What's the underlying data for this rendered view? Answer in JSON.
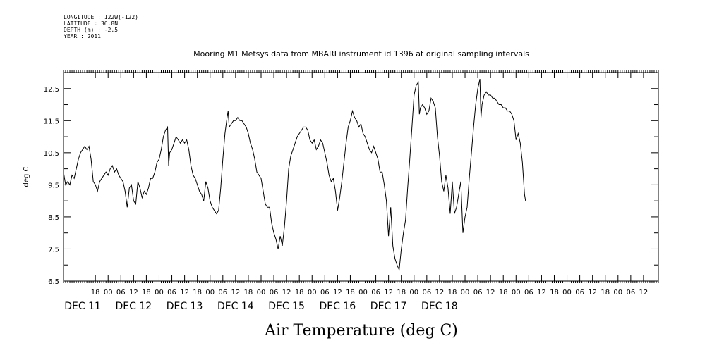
{
  "header": {
    "longitude": "LONGITUDE : 122W(-122)",
    "latitude": "LATITUDE : 36.8N",
    "depth": "DEPTH (m) : -2.5",
    "year": "YEAR : 2011"
  },
  "chart_data": {
    "type": "line",
    "title": "Mooring M1 Metsys data from MBARI instrument id 1396 at original sampling intervals",
    "xlabel": "Air Temperature (deg C)",
    "ylabel": "deg C",
    "ylim": [
      6.5,
      13.0
    ],
    "xlim_hours": [
      -9,
      271
    ],
    "y_ticks": [
      "6.5",
      "7.5",
      "8.5",
      "9.5",
      "10.5",
      "11.5",
      "12.5"
    ],
    "hour_ticks": [
      {
        "h": 6,
        "label": "18"
      },
      {
        "h": 12,
        "label": "00"
      },
      {
        "h": 18,
        "label": "06"
      },
      {
        "h": 24,
        "label": "12"
      },
      {
        "h": 30,
        "label": "18"
      },
      {
        "h": 36,
        "label": "00"
      },
      {
        "h": 42,
        "label": "06"
      },
      {
        "h": 48,
        "label": "12"
      },
      {
        "h": 54,
        "label": "18"
      },
      {
        "h": 60,
        "label": "00"
      },
      {
        "h": 66,
        "label": "06"
      },
      {
        "h": 72,
        "label": "12"
      },
      {
        "h": 78,
        "label": "18"
      },
      {
        "h": 84,
        "label": "00"
      },
      {
        "h": 90,
        "label": "06"
      },
      {
        "h": 96,
        "label": "12"
      },
      {
        "h": 102,
        "label": "18"
      },
      {
        "h": 108,
        "label": "00"
      },
      {
        "h": 114,
        "label": "06"
      },
      {
        "h": 120,
        "label": "12"
      },
      {
        "h": 126,
        "label": "18"
      },
      {
        "h": 132,
        "label": "00"
      },
      {
        "h": 138,
        "label": "06"
      },
      {
        "h": 144,
        "label": "12"
      },
      {
        "h": 150,
        "label": "18"
      },
      {
        "h": 156,
        "label": "00"
      },
      {
        "h": 162,
        "label": "06"
      },
      {
        "h": 168,
        "label": "12"
      },
      {
        "h": 174,
        "label": "18"
      },
      {
        "h": 180,
        "label": "00"
      },
      {
        "h": 186,
        "label": "06"
      },
      {
        "h": 192,
        "label": "12"
      },
      {
        "h": 198,
        "label": "18"
      },
      {
        "h": 204,
        "label": "00"
      },
      {
        "h": 210,
        "label": "06"
      },
      {
        "h": 216,
        "label": "12"
      },
      {
        "h": 222,
        "label": "18"
      },
      {
        "h": 228,
        "label": "00"
      },
      {
        "h": 234,
        "label": "06"
      },
      {
        "h": 240,
        "label": "12"
      },
      {
        "h": 246,
        "label": "18"
      },
      {
        "h": 252,
        "label": "00"
      },
      {
        "h": 258,
        "label": "06"
      },
      {
        "h": 264,
        "label": "12"
      }
    ],
    "day_labels": [
      {
        "h": 0,
        "label": "DEC 11"
      },
      {
        "h": 24,
        "label": "DEC 12"
      },
      {
        "h": 48,
        "label": "DEC 13"
      },
      {
        "h": 72,
        "label": "DEC 14"
      },
      {
        "h": 96,
        "label": "DEC 15"
      },
      {
        "h": 120,
        "label": "DEC 16"
      },
      {
        "h": 144,
        "label": "DEC 17"
      },
      {
        "h": 168,
        "label": "DEC 18"
      }
    ],
    "series": [
      {
        "points": [
          [
            -9,
            9.9
          ],
          [
            -8,
            9.5
          ],
          [
            -7,
            9.6
          ],
          [
            -6,
            9.5
          ],
          [
            -5,
            9.8
          ],
          [
            -4,
            9.7
          ],
          [
            -3,
            10.0
          ],
          [
            -2,
            10.3
          ],
          [
            -1,
            10.5
          ],
          [
            0,
            10.6
          ],
          [
            1,
            10.7
          ],
          [
            2,
            10.6
          ],
          [
            3,
            10.7
          ],
          [
            4,
            10.3
          ],
          [
            5,
            9.6
          ],
          [
            6,
            9.5
          ],
          [
            7,
            9.3
          ],
          [
            8,
            9.6
          ],
          [
            9,
            9.7
          ],
          [
            10,
            9.8
          ],
          [
            11,
            9.9
          ],
          [
            12,
            9.8
          ],
          [
            13,
            10.0
          ],
          [
            14,
            10.1
          ],
          [
            15,
            9.9
          ],
          [
            16,
            10.0
          ],
          [
            17,
            9.8
          ],
          [
            18,
            9.7
          ],
          [
            19,
            9.6
          ],
          [
            20,
            9.3
          ],
          [
            21,
            8.8
          ],
          [
            22,
            9.4
          ],
          [
            23,
            9.5
          ],
          [
            24,
            9.0
          ],
          [
            25,
            8.9
          ],
          [
            26,
            9.6
          ],
          [
            27,
            9.4
          ],
          [
            28,
            9.1
          ],
          [
            29,
            9.3
          ],
          [
            30,
            9.2
          ],
          [
            31,
            9.4
          ],
          [
            32,
            9.7
          ],
          [
            33,
            9.7
          ],
          [
            34,
            9.9
          ],
          [
            35,
            10.2
          ],
          [
            36,
            10.3
          ],
          [
            37,
            10.6
          ],
          [
            38,
            11.0
          ],
          [
            39,
            11.2
          ],
          [
            40,
            11.3
          ],
          [
            40.5,
            10.1
          ],
          [
            41,
            10.5
          ],
          [
            42,
            10.6
          ],
          [
            43,
            10.8
          ],
          [
            44,
            11.0
          ],
          [
            45,
            10.9
          ],
          [
            46,
            10.8
          ],
          [
            47,
            10.9
          ],
          [
            48,
            10.8
          ],
          [
            49,
            10.9
          ],
          [
            50,
            10.6
          ],
          [
            51,
            10.1
          ],
          [
            52,
            9.8
          ],
          [
            53,
            9.7
          ],
          [
            54,
            9.5
          ],
          [
            55,
            9.3
          ],
          [
            56,
            9.2
          ],
          [
            57,
            9.0
          ],
          [
            58,
            9.6
          ],
          [
            59,
            9.4
          ],
          [
            60,
            9.0
          ],
          [
            61,
            8.8
          ],
          [
            62,
            8.7
          ],
          [
            63,
            8.6
          ],
          [
            64,
            8.7
          ],
          [
            65,
            9.4
          ],
          [
            66,
            10.3
          ],
          [
            67,
            11.1
          ],
          [
            68,
            11.6
          ],
          [
            68.5,
            11.8
          ],
          [
            69,
            11.3
          ],
          [
            70,
            11.4
          ],
          [
            71,
            11.5
          ],
          [
            72,
            11.5
          ],
          [
            73,
            11.6
          ],
          [
            74,
            11.5
          ],
          [
            75,
            11.5
          ],
          [
            76,
            11.4
          ],
          [
            77,
            11.3
          ],
          [
            78,
            11.1
          ],
          [
            79,
            10.8
          ],
          [
            80,
            10.6
          ],
          [
            81,
            10.3
          ],
          [
            82,
            9.9
          ],
          [
            83,
            9.8
          ],
          [
            84,
            9.7
          ],
          [
            85,
            9.3
          ],
          [
            86,
            8.9
          ],
          [
            87,
            8.8
          ],
          [
            88,
            8.8
          ],
          [
            89,
            8.3
          ],
          [
            90,
            8.0
          ],
          [
            91,
            7.8
          ],
          [
            92,
            7.5
          ],
          [
            93,
            7.9
          ],
          [
            94,
            7.6
          ],
          [
            95,
            8.2
          ],
          [
            96,
            9.0
          ],
          [
            97,
            10.0
          ],
          [
            98,
            10.4
          ],
          [
            99,
            10.6
          ],
          [
            100,
            10.8
          ],
          [
            101,
            11.0
          ],
          [
            102,
            11.1
          ],
          [
            103,
            11.2
          ],
          [
            104,
            11.3
          ],
          [
            105,
            11.3
          ],
          [
            106,
            11.2
          ],
          [
            107,
            10.9
          ],
          [
            108,
            10.8
          ],
          [
            109,
            10.9
          ],
          [
            110,
            10.6
          ],
          [
            111,
            10.7
          ],
          [
            112,
            10.9
          ],
          [
            113,
            10.8
          ],
          [
            114,
            10.5
          ],
          [
            115,
            10.2
          ],
          [
            116,
            9.8
          ],
          [
            117,
            9.6
          ],
          [
            118,
            9.7
          ],
          [
            119,
            9.3
          ],
          [
            120,
            8.7
          ],
          [
            121,
            9.1
          ],
          [
            122,
            9.6
          ],
          [
            123,
            10.2
          ],
          [
            124,
            10.8
          ],
          [
            125,
            11.3
          ],
          [
            126,
            11.5
          ],
          [
            127,
            11.8
          ],
          [
            128,
            11.6
          ],
          [
            129,
            11.5
          ],
          [
            130,
            11.3
          ],
          [
            131,
            11.4
          ],
          [
            132,
            11.1
          ],
          [
            133,
            11.0
          ],
          [
            134,
            10.8
          ],
          [
            135,
            10.6
          ],
          [
            136,
            10.5
          ],
          [
            137,
            10.7
          ],
          [
            138,
            10.5
          ],
          [
            139,
            10.3
          ],
          [
            140,
            9.9
          ],
          [
            141,
            9.9
          ],
          [
            142,
            9.5
          ],
          [
            143,
            9.0
          ],
          [
            144,
            7.9
          ],
          [
            145,
            8.8
          ],
          [
            146,
            7.6
          ],
          [
            147,
            7.2
          ],
          [
            148,
            7.0
          ],
          [
            149,
            6.85
          ],
          [
            150,
            7.5
          ],
          [
            151,
            8.0
          ],
          [
            152,
            8.4
          ],
          [
            153,
            9.4
          ],
          [
            154,
            10.3
          ],
          [
            155,
            11.3
          ],
          [
            156,
            12.3
          ],
          [
            157,
            12.6
          ],
          [
            158,
            12.7
          ],
          [
            158.5,
            11.7
          ],
          [
            159,
            11.9
          ],
          [
            160,
            12.0
          ],
          [
            161,
            11.9
          ],
          [
            162,
            11.7
          ],
          [
            163,
            11.8
          ],
          [
            164,
            12.2
          ],
          [
            165,
            12.1
          ],
          [
            166,
            11.9
          ],
          [
            167,
            11.0
          ],
          [
            168,
            10.4
          ],
          [
            169,
            9.6
          ],
          [
            170,
            9.3
          ],
          [
            171,
            9.8
          ],
          [
            172,
            9.4
          ],
          [
            173,
            8.6
          ],
          [
            174,
            9.6
          ],
          [
            175,
            8.6
          ],
          [
            176,
            8.8
          ],
          [
            177,
            9.2
          ],
          [
            178,
            9.6
          ],
          [
            179,
            8.0
          ],
          [
            180,
            8.5
          ],
          [
            181,
            8.8
          ],
          [
            182,
            9.7
          ],
          [
            183,
            10.5
          ],
          [
            184,
            11.3
          ],
          [
            185,
            12.0
          ],
          [
            186,
            12.5
          ],
          [
            187,
            12.8
          ],
          [
            187.5,
            11.6
          ],
          [
            188,
            12.0
          ],
          [
            189,
            12.3
          ],
          [
            190,
            12.4
          ],
          [
            191,
            12.3
          ],
          [
            192,
            12.3
          ],
          [
            193,
            12.2
          ],
          [
            194,
            12.2
          ],
          [
            195,
            12.1
          ],
          [
            196,
            12.0
          ],
          [
            197,
            12.0
          ],
          [
            198,
            11.9
          ],
          [
            199,
            11.9
          ],
          [
            200,
            11.8
          ],
          [
            201,
            11.8
          ],
          [
            202,
            11.7
          ],
          [
            203,
            11.5
          ],
          [
            204,
            10.9
          ],
          [
            205,
            11.1
          ],
          [
            206,
            10.8
          ],
          [
            207,
            10.2
          ],
          [
            208,
            9.2
          ],
          [
            208.5,
            9.0
          ]
        ]
      }
    ]
  }
}
